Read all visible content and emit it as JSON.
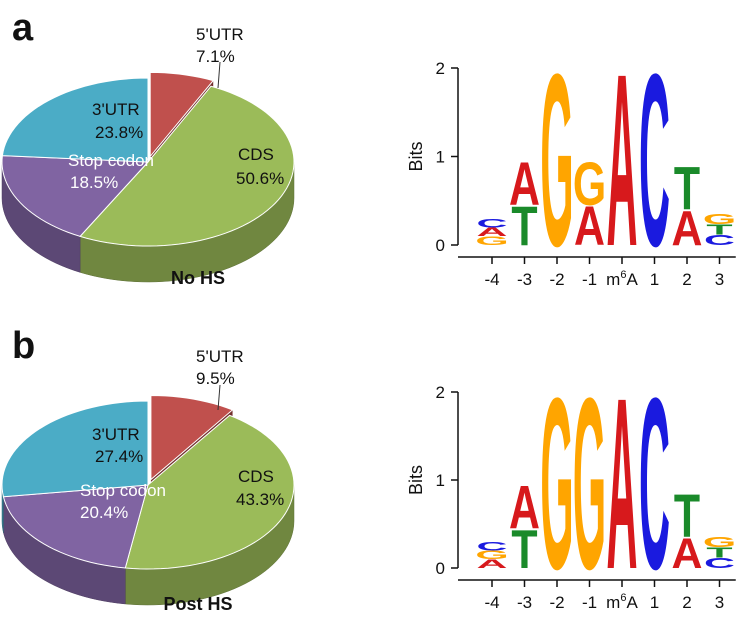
{
  "colors": {
    "5'UTR": "#c0504d",
    "CDS": "#9bbb59",
    "Stop codon": "#8064a2",
    "3'UTR": "#4bacc6",
    "A": "#d7191c",
    "C": "#1a1adf",
    "G": "#ffa500",
    "T": "#1a8a2a"
  },
  "chart_data": [
    {
      "type": "pie",
      "panel": "a",
      "title": "No HS",
      "categories": [
        "5'UTR",
        "CDS",
        "Stop codon",
        "3'UTR"
      ],
      "values": [
        7.1,
        50.6,
        18.5,
        23.8
      ],
      "value_labels": [
        "7.1%",
        "50.6%",
        "18.5%",
        "23.8%"
      ],
      "exploded": "5'UTR",
      "style": "3d"
    },
    {
      "type": "bar",
      "subtype": "sequence-logo",
      "panel": "a",
      "ylabel": "Bits",
      "ylim": [
        0,
        2
      ],
      "yticks": [
        "0",
        "1",
        "2"
      ],
      "positions": [
        "-4",
        "-3",
        "-2",
        "-1",
        "m6A",
        "1",
        "2",
        "3"
      ],
      "stacks": [
        [
          {
            "letter": "G",
            "bits": 0.1
          },
          {
            "letter": "A",
            "bits": 0.1
          },
          {
            "letter": "C",
            "bits": 0.1
          }
        ],
        [
          {
            "letter": "T",
            "bits": 0.45
          },
          {
            "letter": "A",
            "bits": 0.5
          }
        ],
        [
          {
            "letter": "G",
            "bits": 2.0
          }
        ],
        [
          {
            "letter": "A",
            "bits": 0.45
          },
          {
            "letter": "G",
            "bits": 0.5
          }
        ],
        [
          {
            "letter": "A",
            "bits": 2.0
          }
        ],
        [
          {
            "letter": "C",
            "bits": 2.0
          }
        ],
        [
          {
            "letter": "A",
            "bits": 0.4
          },
          {
            "letter": "T",
            "bits": 0.5
          }
        ],
        [
          {
            "letter": "C",
            "bits": 0.12
          },
          {
            "letter": "T",
            "bits": 0.12
          },
          {
            "letter": "G",
            "bits": 0.12
          }
        ]
      ]
    },
    {
      "type": "pie",
      "panel": "b",
      "title": "Post HS",
      "categories": [
        "5'UTR",
        "CDS",
        "Stop codon",
        "3'UTR"
      ],
      "values": [
        9.5,
        43.3,
        20.4,
        27.4
      ],
      "value_labels": [
        "9.5%",
        "43.3%",
        "20.4%",
        "27.4%"
      ],
      "exploded": "5'UTR",
      "style": "3d"
    },
    {
      "type": "bar",
      "subtype": "sequence-logo",
      "panel": "b",
      "ylabel": "Bits",
      "ylim": [
        0,
        2
      ],
      "yticks": [
        "0",
        "1",
        "2"
      ],
      "positions": [
        "-4",
        "-3",
        "-2",
        "-1",
        "m6A",
        "1",
        "2",
        "3"
      ],
      "stacks": [
        [
          {
            "letter": "A",
            "bits": 0.1
          },
          {
            "letter": "G",
            "bits": 0.1
          },
          {
            "letter": "C",
            "bits": 0.1
          }
        ],
        [
          {
            "letter": "T",
            "bits": 0.45
          },
          {
            "letter": "A",
            "bits": 0.5
          }
        ],
        [
          {
            "letter": "G",
            "bits": 2.0
          }
        ],
        [
          {
            "letter": "G",
            "bits": 2.0
          }
        ],
        [
          {
            "letter": "A",
            "bits": 2.0
          }
        ],
        [
          {
            "letter": "C",
            "bits": 2.0
          }
        ],
        [
          {
            "letter": "A",
            "bits": 0.35
          },
          {
            "letter": "T",
            "bits": 0.5
          }
        ],
        [
          {
            "letter": "C",
            "bits": 0.12
          },
          {
            "letter": "T",
            "bits": 0.12
          },
          {
            "letter": "G",
            "bits": 0.12
          }
        ]
      ]
    }
  ],
  "panels": {
    "a": {
      "letter": "a",
      "condition": "No HS",
      "labels": {
        "utr5_name": "5'UTR",
        "utr5_pct": "7.1%",
        "utr3_name": "3'UTR",
        "utr3_pct": "23.8%",
        "stop_name": "Stop codon",
        "stop_pct": "18.5%",
        "cds_name": "CDS",
        "cds_pct": "50.6%"
      }
    },
    "b": {
      "letter": "b",
      "condition": "Post HS",
      "labels": {
        "utr5_name": "5'UTR",
        "utr5_pct": "9.5%",
        "utr3_name": "3'UTR",
        "utr3_pct": "27.4%",
        "stop_name": "Stop codon",
        "stop_pct": "20.4%",
        "cds_name": "CDS",
        "cds_pct": "43.3%"
      }
    }
  }
}
